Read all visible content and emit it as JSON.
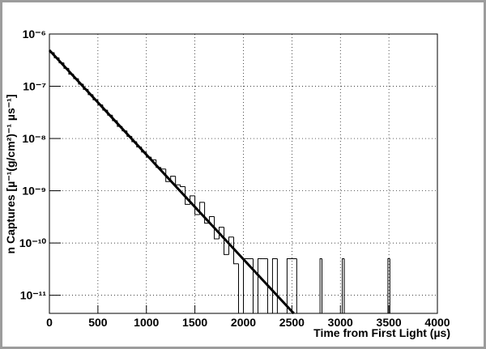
{
  "chart_data": {
    "type": "histogram",
    "x_label": "Time from First Light (µs)",
    "y_label": "n Captures [µ⁻¹(g/cm²)⁻¹ µs⁻¹]",
    "log_y": true,
    "grid": true,
    "color": "#000000",
    "xlim": [
      0,
      4000
    ],
    "xticks": [
      0,
      500,
      1000,
      1500,
      2000,
      2500,
      3000,
      3500,
      4000
    ],
    "ylim": [
      4.5e-12,
      1e-06
    ],
    "yticks": [
      {
        "value": 1e-11,
        "label": "10⁻¹¹"
      },
      {
        "value": 1e-10,
        "label": "10⁻¹⁰"
      },
      {
        "value": 1e-09,
        "label": "10⁻⁹"
      },
      {
        "value": 1e-08,
        "label": "10⁻⁸"
      },
      {
        "value": 1e-07,
        "label": "10⁻⁷"
      },
      {
        "value": 1e-06,
        "label": "10⁻⁶"
      }
    ],
    "bins": [
      0,
      50,
      100,
      150,
      200,
      250,
      300,
      350,
      400,
      450,
      500,
      550,
      600,
      650,
      700,
      750,
      800,
      850,
      900,
      950,
      1000,
      1050,
      1100,
      1150,
      1200,
      1250,
      1300,
      1350,
      1400,
      1450,
      1500,
      1550,
      1600,
      1650,
      1700,
      1750,
      1800,
      1850,
      1900,
      1950,
      2000,
      2050,
      2100,
      2150,
      2200,
      2250,
      2300,
      2350,
      2400,
      2450,
      2500,
      2550,
      2600,
      2790,
      2810,
      3020,
      3040,
      3490,
      3510,
      4000
    ],
    "counts": [
      4.4e-07,
      3.5e-07,
      2.8e-07,
      2.2e-07,
      1.7e-07,
      1.4e-07,
      1.1e-07,
      8.7e-08,
      6.9e-08,
      5.5e-08,
      4.4e-08,
      3.5e-08,
      2.8e-08,
      2.2e-08,
      1.7e-08,
      1.4e-08,
      1.1e-08,
      8.7e-09,
      6.9e-09,
      5.5e-09,
      4.4e-09,
      3.9e-09,
      2.8e-09,
      2.6e-09,
      1.5e-09,
      1.9e-09,
      1.3e-09,
      1.2e-09,
      5.5e-10,
      8e-10,
      3.5e-10,
      6e-10,
      2.4e-10,
      3.2e-10,
      1.2e-10,
      2e-10,
      6e-11,
      1.3e-10,
      4e-11,
      0,
      5e-11,
      5e-11,
      0,
      5e-11,
      5e-11,
      0,
      5e-11,
      0,
      0,
      5e-11,
      5e-11,
      0,
      0,
      5e-11,
      0,
      5e-11,
      0,
      5e-11,
      0
    ],
    "fit": {
      "x": [
        0,
        500,
        1000,
        1500,
        2000,
        2500,
        2520
      ],
      "values": [
        4.9e-07,
        4.9e-08,
        4.9e-09,
        4.9e-10,
        4.9e-11,
        4.9e-12,
        4.5e-12
      ]
    }
  }
}
